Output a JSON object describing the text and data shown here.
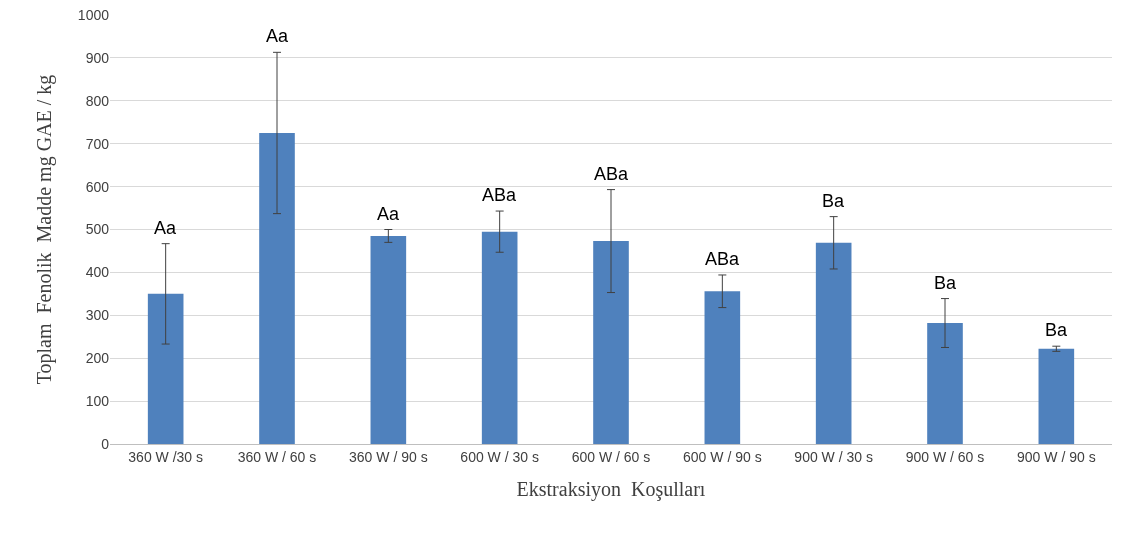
{
  "chart_data": {
    "type": "bar",
    "xlabel": "Ekstraksiyon  Koşulları",
    "ylabel": "Toplam  Fenolik  Madde mg GAE / kg",
    "categories": [
      "360 W /30 s",
      "360 W / 60 s",
      "360 W / 90 s",
      "600 W / 30 s",
      "600 W / 60 s",
      "600 W / 90 s",
      "900 W / 30 s",
      "900 W / 60 s",
      "900 W / 90 s"
    ],
    "values": [
      350,
      725,
      485,
      495,
      473,
      356,
      469,
      282,
      222
    ],
    "errors": [
      117,
      188,
      15,
      48,
      120,
      38,
      61,
      57,
      6
    ],
    "color": "#4f81bd",
    "ylim": [
      0,
      1000
    ],
    "yticks": [
      0,
      100,
      200,
      300,
      400,
      500,
      600,
      700,
      800,
      900,
      1000
    ],
    "grid": "y",
    "legend": false,
    "annotations": [
      {
        "text": "Aa",
        "x": "360 W /30 s",
        "y": 467
      },
      {
        "text": "Aa",
        "x": "360 W / 60 s",
        "y": 913
      },
      {
        "text": "Aa",
        "x": "360 W / 90 s",
        "y": 500
      },
      {
        "text": "ABa",
        "x": "600 W / 30 s",
        "y": 543
      },
      {
        "text": "ABa",
        "x": "600 W / 60 s",
        "y": 593
      },
      {
        "text": "ABa",
        "x": "600 W / 90 s",
        "y": 394
      },
      {
        "text": "Ba",
        "x": "900 W / 30 s",
        "y": 530
      },
      {
        "text": "Ba",
        "x": "900 W / 60 s",
        "y": 339
      },
      {
        "text": "Ba",
        "x": "900 W / 90 s",
        "y": 228
      }
    ]
  }
}
